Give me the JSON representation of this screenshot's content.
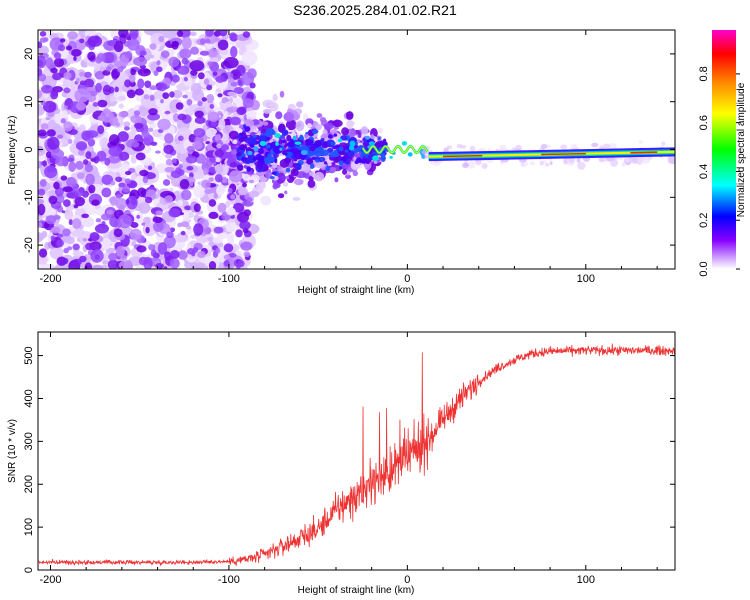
{
  "title": "S236.2025.284.01.02.R21",
  "chart_data": [
    {
      "type": "heatmap",
      "name": "spectrogram",
      "xlabel": "Height of straight line (km)",
      "ylabel": "Frequency (Hz)",
      "xlim": [
        -207,
        150
      ],
      "ylim": [
        -25,
        25
      ],
      "xticks": [
        -200,
        -100,
        0,
        100
      ],
      "yticks": [
        -20,
        -10,
        0,
        10,
        20
      ],
      "colorbar": {
        "label": "Normalized spectral amplitude",
        "range": [
          0,
          1
        ],
        "ticks": [
          0.0,
          0.2,
          0.4,
          0.6,
          0.8
        ]
      },
      "carrier_line": {
        "x_start": 12,
        "x_end": 150,
        "frequency_start": -1.5,
        "frequency_end": -0.5,
        "peak_normalized_amplitude": 1.0
      }
    },
    {
      "type": "line",
      "name": "snr",
      "xlabel": "Height of straight line (km)",
      "ylabel": "SNR (10 * v/v)",
      "xlim": [
        -207,
        150
      ],
      "ylim": [
        0,
        555
      ],
      "xticks": [
        -200,
        -100,
        0,
        100
      ],
      "yticks": [
        0,
        100,
        200,
        300,
        400,
        500
      ],
      "series": [
        {
          "name": "SNR",
          "color": "#ee3333",
          "x": [
            -207,
            -180,
            -150,
            -120,
            -100,
            -90,
            -80,
            -70,
            -60,
            -50,
            -40,
            -30,
            -20,
            -10,
            0,
            10,
            20,
            30,
            40,
            50,
            60,
            70,
            80,
            100,
            120,
            150
          ],
          "y": [
            18,
            18,
            18,
            18,
            20,
            25,
            35,
            55,
            75,
            95,
            140,
            170,
            200,
            230,
            260,
            300,
            350,
            400,
            440,
            470,
            490,
            505,
            510,
            512,
            512,
            512
          ]
        }
      ]
    }
  ],
  "colors": {
    "snr_line": "#ee3333",
    "heatmap_scale": [
      "#ffffff",
      "#cc99ff",
      "#8800ff",
      "#0000ff",
      "#00ffff",
      "#00ff00",
      "#ffff00",
      "#ff8800",
      "#ff0000",
      "#ff00cc"
    ]
  }
}
